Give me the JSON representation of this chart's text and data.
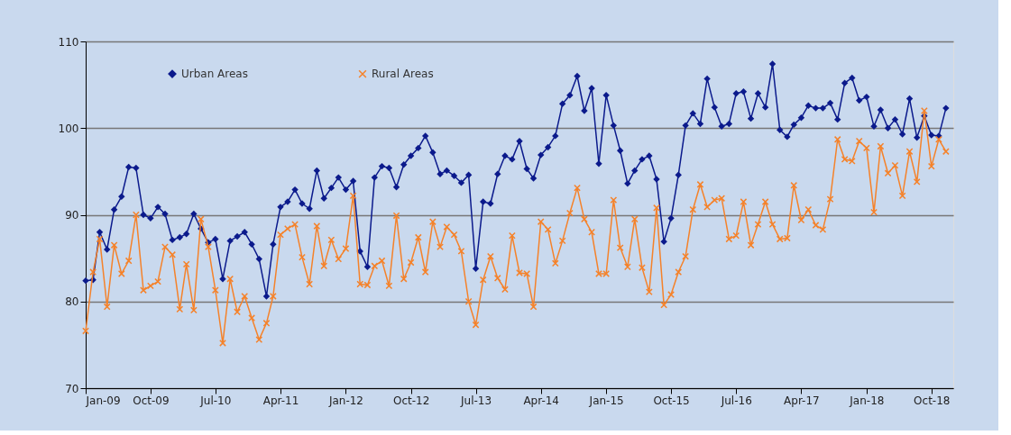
{
  "chart_data": {
    "type": "line",
    "grid": "y",
    "legend": "top left",
    "x": [
      "2009-01",
      "2009-02",
      "2009-03",
      "2009-04",
      "2009-05",
      "2009-06",
      "2009-07",
      "2009-08",
      "2009-09",
      "2009-10",
      "2009-11",
      "2009-12",
      "2010-01",
      "2010-02",
      "2010-03",
      "2010-04",
      "2010-05",
      "2010-06",
      "2010-07",
      "2010-08",
      "2010-09",
      "2010-10",
      "2010-11",
      "2010-12",
      "2011-01",
      "2011-02",
      "2011-03",
      "2011-04",
      "2011-05",
      "2011-06",
      "2011-07",
      "2011-08",
      "2011-09",
      "2011-10",
      "2011-11",
      "2011-12",
      "2012-01",
      "2012-02",
      "2012-03",
      "2012-04",
      "2012-05",
      "2012-06",
      "2012-07",
      "2012-08",
      "2012-09",
      "2012-10",
      "2012-11",
      "2012-12",
      "2013-01",
      "2013-02",
      "2013-03",
      "2013-04",
      "2013-05",
      "2013-06",
      "2013-07",
      "2013-08",
      "2013-09",
      "2013-10",
      "2013-11",
      "2013-12",
      "2014-01",
      "2014-02",
      "2014-03",
      "2014-04",
      "2014-05",
      "2014-06",
      "2014-07",
      "2014-08",
      "2014-09",
      "2014-10",
      "2014-11",
      "2014-12",
      "2015-01",
      "2015-02",
      "2015-03",
      "2015-04",
      "2015-05",
      "2015-06",
      "2015-07",
      "2015-08",
      "2015-09",
      "2015-10",
      "2015-11",
      "2015-12",
      "2016-01",
      "2016-02",
      "2016-03",
      "2016-04",
      "2016-05",
      "2016-06",
      "2016-07",
      "2016-08",
      "2016-09",
      "2016-10",
      "2016-11",
      "2016-12",
      "2017-01",
      "2017-02",
      "2017-03",
      "2017-04",
      "2017-05",
      "2017-06",
      "2017-07",
      "2017-08",
      "2017-09",
      "2017-10",
      "2017-11",
      "2017-12",
      "2018-01",
      "2018-02",
      "2018-03",
      "2018-04",
      "2018-05",
      "2018-06",
      "2018-07",
      "2018-08",
      "2018-09",
      "2018-10",
      "2018-11",
      "2018-12"
    ],
    "xlim": [
      "2009-01",
      "2019-01"
    ],
    "xticks": [
      {
        "value": "2009-01",
        "label": "Jan-09"
      },
      {
        "value": "2009-10",
        "label": "Oct-09"
      },
      {
        "value": "2010-07",
        "label": "Jul-10"
      },
      {
        "value": "2011-04",
        "label": "Apr-11"
      },
      {
        "value": "2012-01",
        "label": "Jan-12"
      },
      {
        "value": "2012-10",
        "label": "Oct-12"
      },
      {
        "value": "2013-07",
        "label": "Jul-13"
      },
      {
        "value": "2014-04",
        "label": "Apr-14"
      },
      {
        "value": "2015-01",
        "label": "Jan-15"
      },
      {
        "value": "2015-10",
        "label": "Oct-15"
      },
      {
        "value": "2016-07",
        "label": "Jul-16"
      },
      {
        "value": "2017-04",
        "label": "Apr-17"
      },
      {
        "value": "2018-01",
        "label": "Jan-18"
      },
      {
        "value": "2018-10",
        "label": "Oct-18"
      }
    ],
    "ylim": [
      70,
      110
    ],
    "yticks": [
      70,
      80,
      90,
      100,
      110
    ],
    "series": [
      {
        "name": "Urban Areas",
        "color": "#0b1a8c",
        "marker": "diamond",
        "values": [
          82.4,
          82.5,
          88.0,
          86.0,
          90.6,
          92.1,
          95.5,
          95.4,
          90.0,
          89.6,
          90.9,
          90.1,
          87.1,
          87.4,
          87.8,
          90.1,
          88.4,
          86.8,
          87.2,
          82.6,
          87.0,
          87.5,
          88.0,
          86.6,
          84.9,
          80.6,
          86.6,
          90.9,
          91.5,
          92.9,
          91.3,
          90.7,
          95.1,
          91.9,
          93.1,
          94.3,
          92.9,
          93.9,
          85.8,
          84.0,
          94.3,
          95.6,
          95.4,
          93.2,
          95.8,
          96.8,
          97.7,
          99.1,
          97.2,
          94.7,
          95.1,
          94.5,
          93.7,
          94.6,
          83.8,
          91.5,
          91.3,
          94.7,
          96.8,
          96.4,
          98.5,
          95.3,
          94.2,
          96.9,
          97.8,
          99.1,
          102.8,
          103.8,
          106.0,
          102.0,
          104.6,
          95.9,
          103.8,
          100.3,
          97.4,
          93.6,
          95.1,
          96.4,
          96.8,
          94.1,
          86.9,
          89.6,
          94.6,
          100.3,
          101.7,
          100.5,
          105.7,
          102.4,
          100.2,
          100.5,
          104.0,
          104.2,
          101.1,
          104.0,
          102.4,
          107.4,
          99.8,
          99.0,
          100.4,
          101.2,
          102.6,
          102.3,
          102.3,
          102.9,
          101.0,
          105.2,
          105.8,
          103.2,
          103.6,
          100.2,
          102.1,
          100.0,
          101.0,
          99.3,
          103.4,
          98.9,
          101.4,
          99.2,
          99.1,
          102.3
        ]
      },
      {
        "name": "Rural Areas",
        "color": "#f5822a",
        "marker": "cross",
        "values": [
          76.6,
          83.4,
          87.2,
          79.4,
          86.5,
          83.2,
          84.7,
          90.0,
          81.3,
          81.8,
          82.3,
          86.3,
          85.4,
          79.1,
          84.3,
          79.0,
          89.5,
          86.3,
          81.3,
          75.2,
          82.6,
          78.8,
          80.6,
          78.1,
          75.6,
          77.5,
          80.6,
          87.7,
          88.4,
          88.9,
          85.1,
          82.0,
          88.7,
          84.1,
          87.1,
          84.9,
          86.1,
          92.2,
          82.0,
          81.9,
          84.1,
          84.7,
          81.8,
          89.9,
          82.6,
          84.5,
          87.4,
          83.4,
          89.2,
          86.3,
          88.6,
          87.7,
          85.8,
          80.0,
          77.3,
          82.5,
          85.2,
          82.7,
          81.4,
          87.6,
          83.3,
          83.2,
          79.4,
          89.2,
          88.3,
          84.4,
          87.0,
          90.2,
          93.1,
          89.5,
          88.0,
          83.2,
          83.2,
          91.7,
          86.2,
          84.0,
          89.5,
          83.9,
          81.1,
          90.8,
          79.6,
          80.8,
          83.4,
          85.2,
          90.6,
          93.5,
          90.9,
          91.7,
          91.9,
          87.2,
          87.6,
          91.5,
          86.5,
          88.9,
          91.5,
          88.9,
          87.2,
          87.3,
          93.4,
          89.4,
          90.6,
          88.8,
          88.3,
          91.8,
          98.7,
          96.4,
          96.2,
          98.5,
          97.7,
          90.3,
          97.9,
          94.8,
          95.7,
          92.2,
          97.3,
          93.8,
          102.0,
          95.6,
          98.7,
          97.3
        ]
      }
    ]
  }
}
